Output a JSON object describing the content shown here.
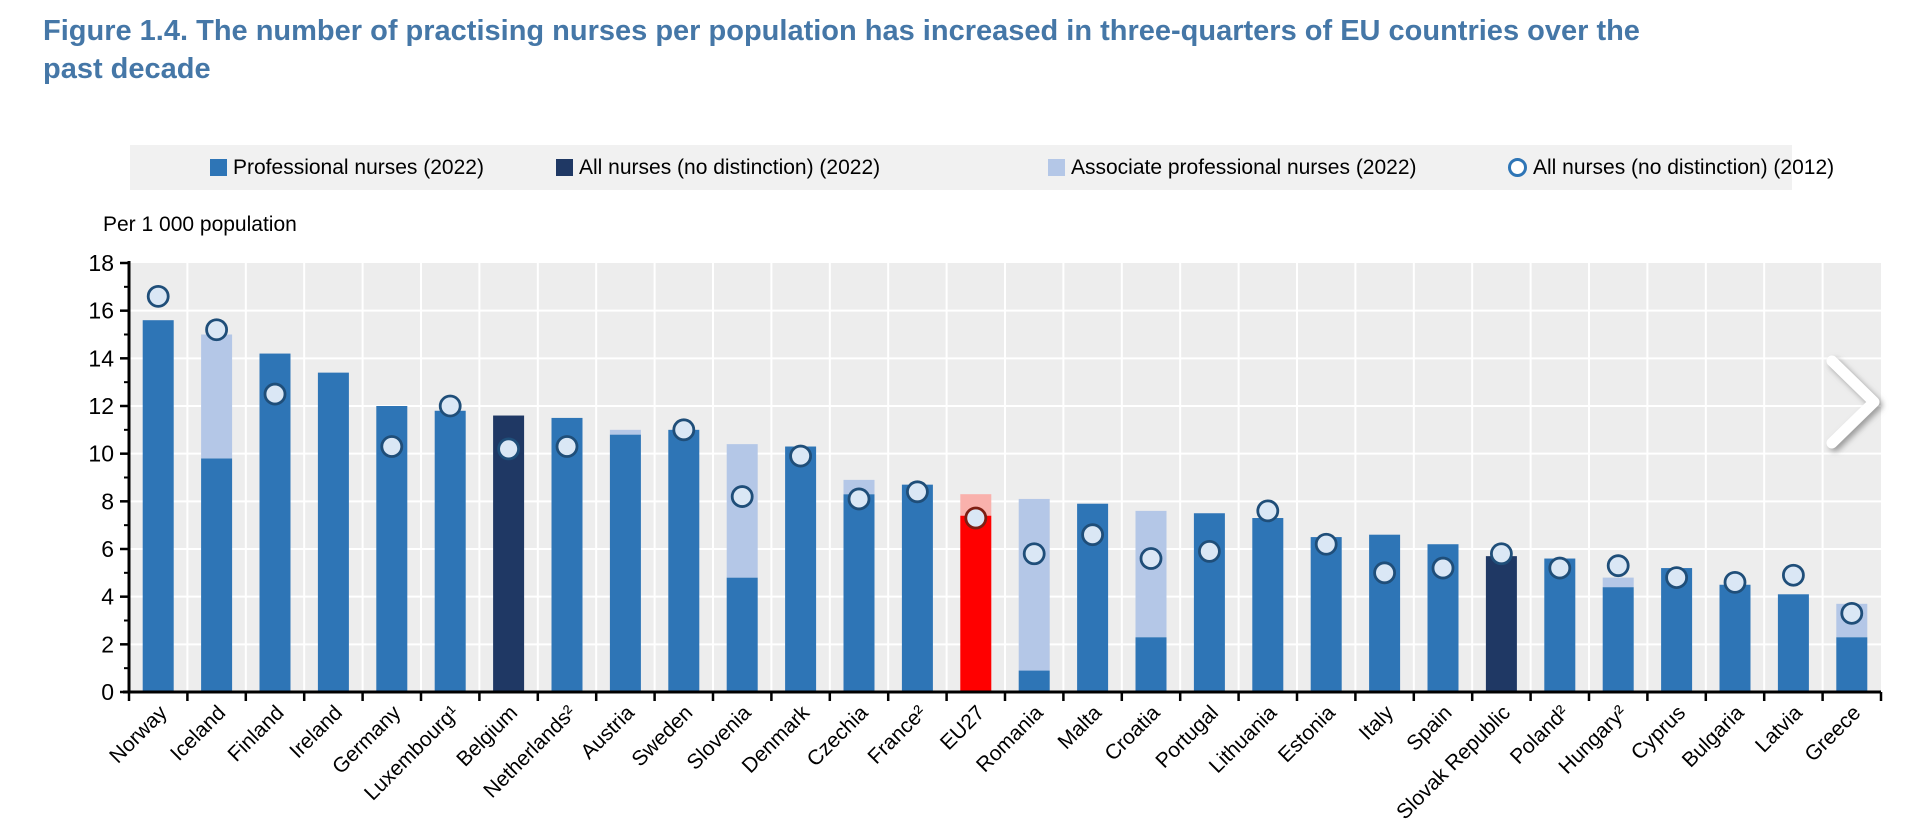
{
  "figure": {
    "title": "Figure 1.4. The number of practising nurses per population has increased in three-quarters of EU countries over the past decade",
    "title_lines": [
      "Figure 1.4. The number of practising nurses per population has increased in three-quarters of EU countries over the",
      "past decade"
    ]
  },
  "legend": {
    "items": [
      {
        "label": "Professional nurses (2022)",
        "swatch": "square",
        "color": "#2E75B6"
      },
      {
        "label": "All nurses (no distinction) (2022)",
        "swatch": "square",
        "color": "#1F3864"
      },
      {
        "label": "Associate professional nurses (2022)",
        "swatch": "square",
        "color": "#B4C7E7"
      },
      {
        "label": "All nurses (no distinction) (2012)",
        "swatch": "circle",
        "color": "#2E75B6"
      }
    ]
  },
  "nav": {
    "next_arrow": "chevron-right"
  },
  "chart_data": {
    "type": "bar",
    "title": "Figure 1.4. The number of practising nurses per population has increased in three-quarters of EU countries over the past decade",
    "unit_label": "Per 1 000 population",
    "xlabel": "",
    "ylabel": "Per 1 000 population",
    "ylim": [
      0,
      18
    ],
    "ytick_step": 2,
    "grid": true,
    "legend_position": "top",
    "plot_background": "#EDEDED",
    "gridline_color": "#FFFFFF",
    "categories": [
      "Norway",
      "Iceland",
      "Finland",
      "Ireland",
      "Germany",
      "Luxembourg¹",
      "Belgium",
      "Netherlands²",
      "Austria",
      "Sweden",
      "Slovenia",
      "Denmark",
      "Czechia",
      "France²",
      "EU27",
      "Romania",
      "Malta",
      "Croatia",
      "Portugal",
      "Lithuania",
      "Estonia",
      "Italy",
      "Spain",
      "Slovak Republic",
      "Poland²",
      "Hungary²",
      "Cyprus",
      "Bulgaria",
      "Latvia",
      "Greece"
    ],
    "series": [
      {
        "name": "Professional nurses (2022)",
        "type": "bar",
        "color": "#2E75B6",
        "values": [
          15.6,
          9.8,
          14.2,
          13.4,
          12.0,
          11.8,
          null,
          11.5,
          10.8,
          11.0,
          4.8,
          10.3,
          8.3,
          8.7,
          7.4,
          0.9,
          7.9,
          2.3,
          7.5,
          7.3,
          6.5,
          6.6,
          6.2,
          null,
          5.6,
          4.4,
          5.2,
          4.5,
          4.1,
          2.3
        ]
      },
      {
        "name": "All nurses (no distinction) (2022)",
        "type": "bar",
        "color": "#1F3864",
        "values": [
          null,
          null,
          null,
          null,
          null,
          null,
          11.6,
          null,
          null,
          null,
          null,
          null,
          null,
          null,
          null,
          null,
          null,
          null,
          null,
          null,
          null,
          null,
          null,
          5.7,
          null,
          null,
          null,
          null,
          null,
          null
        ]
      },
      {
        "name": "Associate professional nurses (2022)",
        "type": "bar",
        "stacking": "cumulative_top_over_professional",
        "color": "#B4C7E7",
        "values": [
          null,
          15.0,
          null,
          null,
          null,
          null,
          null,
          null,
          11.0,
          null,
          10.4,
          null,
          8.9,
          null,
          8.3,
          8.1,
          null,
          7.6,
          null,
          null,
          null,
          null,
          null,
          null,
          null,
          4.8,
          null,
          null,
          null,
          3.7
        ]
      },
      {
        "name": "All nurses (no distinction) (2012)",
        "type": "scatter-circle",
        "fill": "#DAE7F5",
        "stroke": "#1F4E79",
        "values": [
          16.6,
          15.2,
          12.5,
          null,
          10.3,
          12.0,
          10.2,
          10.3,
          null,
          11.0,
          8.2,
          9.9,
          8.1,
          8.4,
          7.3,
          5.8,
          6.6,
          5.6,
          5.9,
          7.6,
          6.2,
          5.0,
          5.2,
          5.8,
          5.2,
          5.3,
          4.8,
          4.6,
          4.9,
          3.3
        ]
      }
    ],
    "highlight": {
      "category": "EU27",
      "bar_color": "#FF0000",
      "associate_color": "#F9B1AC",
      "circle_stroke": "#7E1E12"
    },
    "yticks": [
      0,
      2,
      4,
      6,
      8,
      10,
      12,
      14,
      16,
      18
    ]
  }
}
